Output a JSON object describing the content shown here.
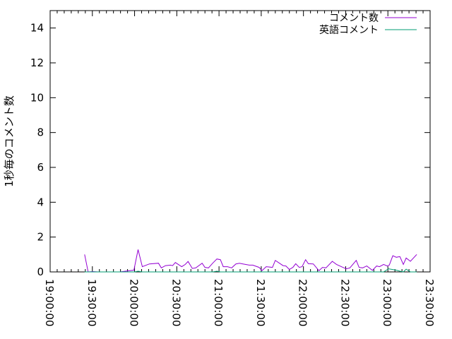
{
  "chart_data": {
    "type": "line",
    "title": "",
    "xlabel": "",
    "ylabel": "1秒毎のコメント数",
    "xlim": [
      "19:00:00",
      "23:30:00"
    ],
    "ylim": [
      0,
      15
    ],
    "x_ticks": [
      "19:00:00",
      "19:30:00",
      "20:00:00",
      "20:30:00",
      "21:00:00",
      "21:30:00",
      "22:00:00",
      "22:30:00",
      "23:00:00",
      "23:30:00"
    ],
    "y_ticks": [
      "0",
      "2",
      "4",
      "6",
      "8",
      "10",
      "12",
      "14"
    ],
    "grid": false,
    "legend_position": "top-right",
    "series": [
      {
        "name": "コメント数",
        "color": "#9400d3",
        "points": [
          [
            "19:24:30",
            1.0
          ],
          [
            "19:27:00",
            0
          ],
          [
            "19:30:00",
            0.02
          ],
          [
            "19:34:30",
            0
          ],
          [
            "19:42:00",
            0
          ],
          [
            "19:49:30",
            0
          ],
          [
            "19:54:30",
            0.05
          ],
          [
            "19:59:30",
            0.1
          ],
          [
            "20:02:30",
            1.28
          ],
          [
            "20:05:30",
            0.3
          ],
          [
            "20:10:30",
            0.46
          ],
          [
            "20:17:00",
            0.5
          ],
          [
            "20:19:00",
            0.23
          ],
          [
            "20:22:00",
            0.36
          ],
          [
            "20:25:30",
            0.39
          ],
          [
            "20:27:00",
            0.36
          ],
          [
            "20:29:00",
            0.54
          ],
          [
            "20:33:30",
            0.3
          ],
          [
            "20:36:00",
            0.43
          ],
          [
            "20:38:00",
            0.6
          ],
          [
            "20:41:00",
            0.2
          ],
          [
            "20:43:30",
            0.23
          ],
          [
            "20:48:00",
            0.5
          ],
          [
            "20:50:00",
            0.26
          ],
          [
            "20:52:30",
            0.23
          ],
          [
            "20:55:30",
            0.5
          ],
          [
            "20:58:30",
            0.74
          ],
          [
            "21:01:00",
            0.7
          ],
          [
            "21:03:00",
            0.3
          ],
          [
            "21:06:00",
            0.3
          ],
          [
            "21:09:00",
            0.23
          ],
          [
            "21:12:00",
            0.46
          ],
          [
            "21:14:30",
            0.5
          ],
          [
            "21:17:00",
            0.46
          ],
          [
            "21:21:30",
            0.39
          ],
          [
            "21:24:00",
            0.39
          ],
          [
            "21:28:30",
            0.26
          ],
          [
            "21:30:30",
            0.07
          ],
          [
            "21:33:30",
            0.3
          ],
          [
            "21:38:00",
            0.26
          ],
          [
            "21:40:00",
            0.66
          ],
          [
            "21:45:30",
            0.36
          ],
          [
            "21:47:30",
            0.34
          ],
          [
            "21:50:00",
            0.14
          ],
          [
            "21:52:30",
            0.26
          ],
          [
            "21:54:30",
            0.47
          ],
          [
            "21:57:00",
            0.26
          ],
          [
            "21:59:00",
            0.3
          ],
          [
            "22:01:30",
            0.7
          ],
          [
            "22:03:30",
            0.47
          ],
          [
            "22:07:00",
            0.46
          ],
          [
            "22:11:00",
            0.07
          ],
          [
            "22:13:30",
            0.26
          ],
          [
            "22:16:00",
            0.23
          ],
          [
            "22:20:30",
            0.61
          ],
          [
            "22:23:30",
            0.43
          ],
          [
            "22:28:00",
            0.26
          ],
          [
            "22:30:30",
            0.18
          ],
          [
            "22:33:00",
            0.23
          ],
          [
            "22:37:30",
            0.66
          ],
          [
            "22:39:30",
            0.26
          ],
          [
            "22:42:00",
            0.23
          ],
          [
            "22:45:00",
            0.34
          ],
          [
            "22:49:00",
            0.09
          ],
          [
            "22:52:00",
            0.34
          ],
          [
            "22:54:00",
            0.3
          ],
          [
            "22:57:00",
            0.43
          ],
          [
            "22:59:30",
            0.34
          ],
          [
            "23:01:00",
            0.39
          ],
          [
            "23:03:30",
            0.93
          ],
          [
            "23:06:00",
            0.84
          ],
          [
            "23:08:30",
            0.88
          ],
          [
            "23:11:00",
            0.43
          ],
          [
            "23:13:00",
            0.8
          ],
          [
            "23:16:00",
            0.61
          ],
          [
            "23:20:30",
            1.0
          ]
        ]
      },
      {
        "name": "英語コメント",
        "color": "#009e73",
        "points": [
          [
            "19:24:30",
            0
          ],
          [
            "20:00:00",
            0
          ],
          [
            "20:02:30",
            0.04
          ],
          [
            "20:05:30",
            0
          ],
          [
            "20:55:30",
            0
          ],
          [
            "20:58:30",
            0.04
          ],
          [
            "21:01:00",
            0
          ],
          [
            "22:57:00",
            0
          ],
          [
            "23:00:30",
            0.18
          ],
          [
            "23:03:00",
            0.14
          ],
          [
            "23:06:00",
            0.1
          ],
          [
            "23:08:30",
            0.04
          ],
          [
            "23:11:00",
            0
          ],
          [
            "23:13:00",
            0.16
          ],
          [
            "23:16:00",
            0
          ],
          [
            "23:20:30",
            0
          ]
        ]
      }
    ]
  }
}
